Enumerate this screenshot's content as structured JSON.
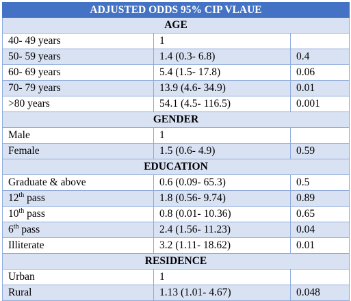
{
  "table": {
    "title": "ADJUSTED ODDS 95% CIP VLAUE",
    "sections": [
      {
        "heading": "AGE",
        "rows": [
          {
            "label": "40- 49 years",
            "or": "1",
            "p": ""
          },
          {
            "label": "50- 59 years",
            "or": "1.4 (0.3- 6.8)",
            "p": "0.4"
          },
          {
            "label": "60- 69 years",
            "or": "5.4 (1.5- 17.8)",
            "p": "0.06"
          },
          {
            "label": "70- 79 years",
            "or": "13.9 (4.6- 34.9)",
            "p": "0.01"
          },
          {
            "label": ">80 years",
            "or": "54.1 (4.5- 116.5)",
            "p": "0.001"
          }
        ]
      },
      {
        "heading": "GENDER",
        "rows": [
          {
            "label": "Male",
            "or": "1",
            "p": ""
          },
          {
            "label": "Female",
            "or": "1.5 (0.6- 4.9)",
            "p": "0.59"
          }
        ]
      },
      {
        "heading": "EDUCATION",
        "rows": [
          {
            "label": "Graduate & above",
            "or": "0.6 (0.09- 65.3)",
            "p": "0.5"
          },
          {
            "label": "12",
            "sup": "th",
            "suffix": " pass",
            "or": "1.8 (0.56- 9.74)",
            "p": "0.89"
          },
          {
            "label": "10",
            "sup": "th",
            "suffix": " pass",
            "or": "0.8 (0.01- 10.36)",
            "p": "0.65"
          },
          {
            "label": "6",
            "sup": "th",
            "suffix": " pass",
            "or": "2.4 (1.56- 11.23)",
            "p": "0.04"
          },
          {
            "label": "Illiterate",
            "or": "3.2 (1.11- 18.62)",
            "p": "0.01"
          }
        ]
      },
      {
        "heading": "RESIDENCE",
        "rows": [
          {
            "label": "Urban",
            "or": "1",
            "p": ""
          },
          {
            "label": "Rural",
            "or": "1.13 (1.01- 4.67)",
            "p": "0.048"
          }
        ]
      }
    ]
  }
}
